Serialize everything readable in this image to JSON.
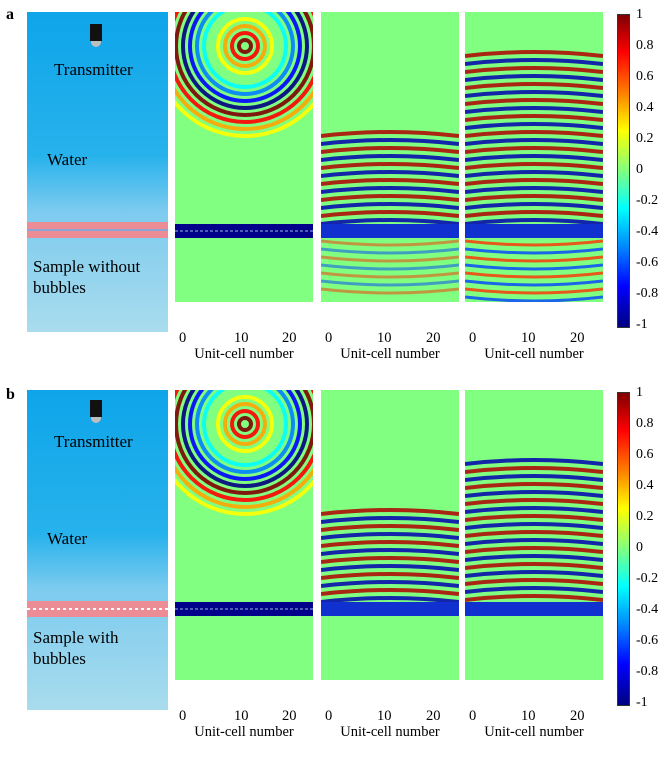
{
  "panels": [
    {
      "letter": "a",
      "labels": {
        "transmitter": "Transmitter",
        "medium": "Water",
        "sample": "Sample without bubbles"
      }
    },
    {
      "letter": "b",
      "labels": {
        "transmitter": "Transmitter",
        "medium": "Water",
        "sample": "Sample with bubbles"
      }
    }
  ],
  "field_xlabel": "Unit-cell number",
  "field_xticks": [
    "0",
    "10",
    "20"
  ],
  "colorbar_ticks": [
    "1",
    "0.8",
    "0.6",
    "0.4",
    "0.2",
    "0",
    "-0.2",
    "-0.4",
    "-0.6",
    "-0.8",
    "-1"
  ],
  "colors": {
    "water_top": "#0ea5e9",
    "water_bottom": "#a9dced",
    "layer": "#ec8d96",
    "background_field": "#80ff80"
  }
}
